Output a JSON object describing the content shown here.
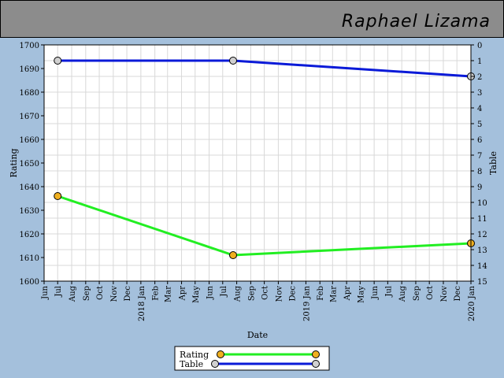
{
  "header": {
    "player_name": "Raphael Lizama"
  },
  "colors": {
    "background": "#a4c0dc",
    "header": "#8c8c8c",
    "plot_area": "#ffffff",
    "grid": "#d8d8d8",
    "rating_line": "#22ee22",
    "rating_marker": "#f0b020",
    "table_line": "#0a1ad8",
    "table_marker": "#d0d0d0"
  },
  "chart_data": {
    "type": "line",
    "xlabel": "Date",
    "ylabel": "Rating",
    "y2label": "Table",
    "ylim": [
      1600,
      1700
    ],
    "y2lim": [
      0,
      15
    ],
    "y2_inverted": true,
    "yticks": [
      1600,
      1610,
      1620,
      1630,
      1640,
      1650,
      1660,
      1670,
      1680,
      1690,
      1700
    ],
    "y2ticks": [
      0,
      1,
      2,
      3,
      4,
      5,
      6,
      7,
      8,
      9,
      10,
      11,
      12,
      13,
      14,
      15
    ],
    "x_tick_labels": [
      "Jun",
      "Jul",
      "Aug",
      "Sep",
      "Oct",
      "Nov",
      "Dec",
      "2018 Jan",
      "Feb",
      "Mar",
      "Apr",
      "May",
      "Jun",
      "Jul",
      "Aug",
      "Sep",
      "Oct",
      "Nov",
      "Dec",
      "2019 Jan",
      "Feb",
      "Mar",
      "Apr",
      "May",
      "Jun",
      "Jul",
      "Aug",
      "Sep",
      "Oct",
      "Nov",
      "Dec",
      "2020 Jan"
    ],
    "grid": true,
    "legend_position": "bottom-center",
    "series": [
      {
        "name": "Rating",
        "axis": "left",
        "x": [
          "2017-07-01",
          "2018-07-24",
          "2020-01-01"
        ],
        "values": [
          1636,
          1611,
          1616
        ]
      },
      {
        "name": "Table",
        "axis": "right",
        "x": [
          "2017-07-01",
          "2018-07-24",
          "2020-01-01"
        ],
        "values": [
          1,
          1,
          2
        ]
      }
    ]
  }
}
